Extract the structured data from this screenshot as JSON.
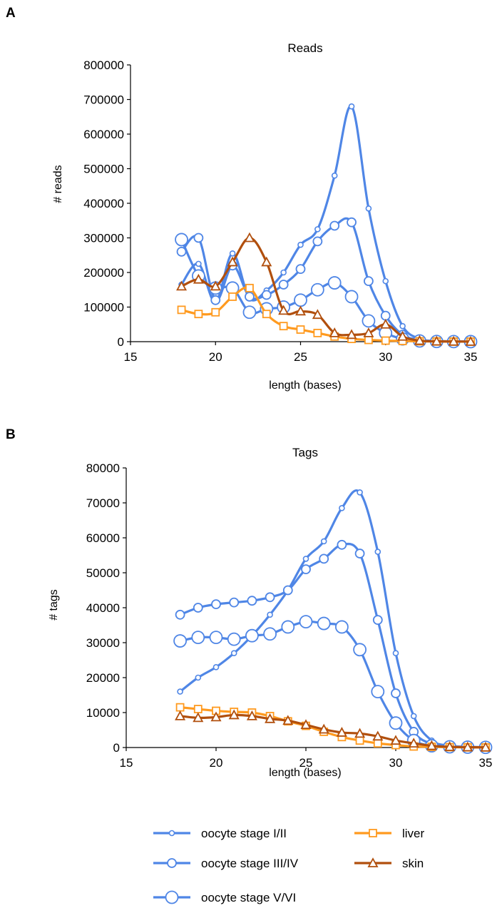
{
  "colors": {
    "oocyte": "#4f86e6",
    "liver": "#ff9a1f",
    "skin": "#b14f0d"
  },
  "chart_data": [
    {
      "panel_label": "A",
      "type": "line",
      "title": "Reads",
      "xlabel": "length (bases)",
      "ylabel": "# reads",
      "xlim": [
        15,
        35
      ],
      "ylim": [
        0,
        800000
      ],
      "xticks": [
        "15",
        "20",
        "25",
        "30",
        "35"
      ],
      "yticks": [
        "0",
        "100000",
        "200000",
        "300000",
        "400000",
        "500000",
        "600000",
        "700000",
        "800000"
      ],
      "x": [
        18,
        19,
        20,
        21,
        22,
        23,
        24,
        25,
        26,
        27,
        28,
        29,
        30,
        31,
        32,
        33,
        34,
        35
      ],
      "series": [
        {
          "name": "oocyte stage I/II",
          "marker": "circle-small",
          "color": "oocyte",
          "values": [
            165000,
            225000,
            115000,
            255000,
            125000,
            148000,
            200000,
            280000,
            325000,
            480000,
            680000,
            385000,
            175000,
            45000,
            8000,
            2000,
            1000,
            500
          ]
        },
        {
          "name": "oocyte stage III/IV",
          "marker": "circle-medium",
          "color": "oocyte",
          "values": [
            260000,
            300000,
            120000,
            220000,
            130000,
            135000,
            165000,
            210000,
            290000,
            335000,
            345000,
            175000,
            75000,
            20000,
            5000,
            1000,
            500,
            200
          ]
        },
        {
          "name": "oocyte stage V/VI",
          "marker": "circle-large",
          "color": "oocyte",
          "values": [
            295000,
            190000,
            155000,
            155000,
            85000,
            95000,
            100000,
            120000,
            150000,
            170000,
            130000,
            60000,
            25000,
            8000,
            2000,
            500,
            200,
            100
          ]
        },
        {
          "name": "liver",
          "marker": "square",
          "color": "liver",
          "values": [
            92000,
            80000,
            85000,
            130000,
            155000,
            80000,
            45000,
            35000,
            25000,
            15000,
            8000,
            5000,
            3000,
            2000,
            1000,
            500,
            200,
            100
          ]
        },
        {
          "name": "skin",
          "marker": "triangle",
          "color": "skin",
          "values": [
            160000,
            180000,
            160000,
            230000,
            300000,
            230000,
            90000,
            88000,
            78000,
            25000,
            20000,
            25000,
            50000,
            15000,
            3000,
            1000,
            500,
            200
          ]
        }
      ]
    },
    {
      "panel_label": "B",
      "type": "line",
      "title": "Tags",
      "xlabel": "length (bases)",
      "ylabel": "# tags",
      "xlim": [
        15,
        35
      ],
      "ylim": [
        0,
        80000
      ],
      "xticks": [
        "15",
        "20",
        "25",
        "30",
        "35"
      ],
      "yticks": [
        "0",
        "10000",
        "20000",
        "30000",
        "40000",
        "50000",
        "60000",
        "70000",
        "80000"
      ],
      "x": [
        18,
        19,
        20,
        21,
        22,
        23,
        24,
        25,
        26,
        27,
        28,
        29,
        30,
        31,
        32,
        33,
        34,
        35
      ],
      "series": [
        {
          "name": "oocyte stage I/II",
          "marker": "circle-small",
          "color": "oocyte",
          "values": [
            16000,
            20000,
            23000,
            27000,
            32000,
            38000,
            45000,
            54000,
            59000,
            68500,
            73000,
            56000,
            27000,
            9000,
            2000,
            500,
            200,
            100
          ]
        },
        {
          "name": "oocyte stage III/IV",
          "marker": "circle-medium",
          "color": "oocyte",
          "values": [
            38000,
            40000,
            41000,
            41500,
            42000,
            43000,
            45000,
            51000,
            54000,
            58000,
            55500,
            36500,
            15500,
            4500,
            1000,
            300,
            100,
            50
          ]
        },
        {
          "name": "oocyte stage V/VI",
          "marker": "circle-large",
          "color": "oocyte",
          "values": [
            30500,
            31500,
            31500,
            31000,
            32000,
            32500,
            34500,
            36000,
            35500,
            34500,
            28000,
            16000,
            7000,
            2000,
            500,
            200,
            100,
            50
          ]
        },
        {
          "name": "liver",
          "marker": "square",
          "color": "liver",
          "values": [
            11500,
            11000,
            10500,
            10200,
            10000,
            9000,
            7500,
            6200,
            4500,
            3000,
            2000,
            1200,
            700,
            300,
            200,
            100,
            50,
            20
          ]
        },
        {
          "name": "skin",
          "marker": "triangle",
          "color": "skin",
          "values": [
            9000,
            8500,
            8700,
            9300,
            9000,
            8200,
            7700,
            6500,
            5200,
            4300,
            4000,
            3200,
            2000,
            1200,
            500,
            200,
            100,
            50
          ]
        }
      ]
    }
  ],
  "legend": {
    "items": [
      {
        "label": "oocyte stage I/II",
        "marker": "circle-small",
        "color": "oocyte"
      },
      {
        "label": "oocyte stage III/IV",
        "marker": "circle-medium",
        "color": "oocyte"
      },
      {
        "label": "oocyte stage V/VI",
        "marker": "circle-large",
        "color": "oocyte"
      },
      {
        "label": "liver",
        "marker": "square",
        "color": "liver"
      },
      {
        "label": "skin",
        "marker": "triangle",
        "color": "skin"
      }
    ]
  }
}
